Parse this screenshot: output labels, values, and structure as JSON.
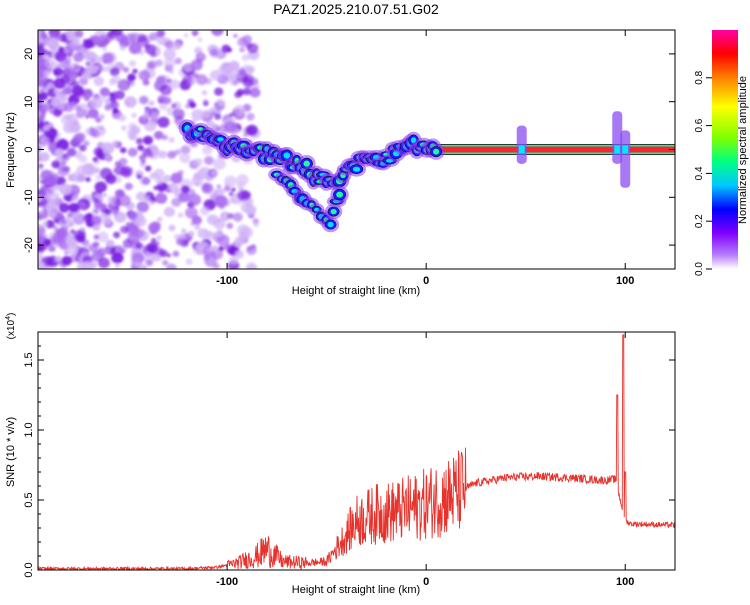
{
  "title": "PAZ1.2025.210.07.51.G02",
  "chart_data": [
    {
      "type": "heatmap",
      "xlabel": "Height of straight line (km)",
      "ylabel": "Frequency (Hz)",
      "xlim": [
        -195,
        125
      ],
      "ylim": [
        -25,
        25
      ],
      "xticks": [
        -100,
        0,
        100
      ],
      "xtick_labels": [
        "-100",
        "0",
        "100"
      ],
      "yticks": [
        -20,
        -10,
        0,
        10,
        20
      ],
      "ytick_labels": [
        "-20",
        "-10",
        "0",
        "10",
        "20"
      ],
      "colorbar": {
        "label": "Normalized spectral amplitude",
        "range": [
          0,
          1
        ],
        "ticks": [
          0.0,
          0.2,
          0.4,
          0.6,
          0.8
        ],
        "tick_labels": [
          "0.0",
          "0.2",
          "0.4",
          "0.6",
          "0.8"
        ],
        "colors": [
          "#ffffff",
          "#b57bff",
          "#8000ff",
          "#0000ff",
          "#00c8ff",
          "#00ff80",
          "#80ff00",
          "#ffff00",
          "#ff8000",
          "#ff0000",
          "#ff00a0"
        ]
      },
      "main_trace": [
        {
          "x": -120,
          "y": 4
        },
        {
          "x": -110,
          "y": 3
        },
        {
          "x": -100,
          "y": 1
        },
        {
          "x": -90,
          "y": 0
        },
        {
          "x": -80,
          "y": -1
        },
        {
          "x": -70,
          "y": -2
        },
        {
          "x": -60,
          "y": -4
        },
        {
          "x": -55,
          "y": -6
        },
        {
          "x": -47,
          "y": -7
        },
        {
          "x": -40,
          "y": -4
        },
        {
          "x": -30,
          "y": -2
        },
        {
          "x": -20,
          "y": -2
        },
        {
          "x": -15,
          "y": 0
        },
        {
          "x": -8,
          "y": 1
        },
        {
          "x": -3,
          "y": 1
        },
        {
          "x": 5,
          "y": 0
        },
        {
          "x": 20,
          "y": 0
        },
        {
          "x": 50,
          "y": 0
        },
        {
          "x": 80,
          "y": 0
        },
        {
          "x": 100,
          "y": 0
        },
        {
          "x": 125,
          "y": 0
        }
      ],
      "secondary_branch": [
        {
          "x": -75,
          "y": -5
        },
        {
          "x": -68,
          "y": -8
        },
        {
          "x": -60,
          "y": -11
        },
        {
          "x": -55,
          "y": -13
        },
        {
          "x": -48,
          "y": -16
        },
        {
          "x": -45,
          "y": -11
        },
        {
          "x": -42,
          "y": -8
        }
      ],
      "strong_line": {
        "y": 0,
        "x_start": 0,
        "x_end": 125
      },
      "bursts": [
        {
          "x": 48,
          "y_min": -3,
          "y_max": 5
        },
        {
          "x": 96,
          "y_min": -3,
          "y_max": 8
        },
        {
          "x": 100,
          "y_min": -8,
          "y_max": 4
        }
      ]
    },
    {
      "type": "line",
      "xlabel": "Height of straight line (km)",
      "ylabel": "SNR (10 * v/v)",
      "y_multiplier_label": "(x10",
      "y_multiplier_exp": "4",
      "xlim": [
        -195,
        125
      ],
      "ylim": [
        0,
        1.7
      ],
      "xticks": [
        -100,
        0,
        100
      ],
      "xtick_labels": [
        "-100",
        "0",
        "100"
      ],
      "yticks": [
        0.0,
        0.5,
        1.0,
        1.5
      ],
      "ytick_labels": [
        "0.0",
        "0.5",
        "1.0",
        "1.5"
      ],
      "line_color": "#e8322c",
      "envelope": [
        {
          "x": -195,
          "y": 0.01
        },
        {
          "x": -120,
          "y": 0.01
        },
        {
          "x": -105,
          "y": 0.02
        },
        {
          "x": -95,
          "y": 0.05
        },
        {
          "x": -85,
          "y": 0.1
        },
        {
          "x": -80,
          "y": 0.15
        },
        {
          "x": -72,
          "y": 0.06
        },
        {
          "x": -60,
          "y": 0.05
        },
        {
          "x": -50,
          "y": 0.06
        },
        {
          "x": -35,
          "y": 0.35
        },
        {
          "x": -25,
          "y": 0.4
        },
        {
          "x": -15,
          "y": 0.42
        },
        {
          "x": -5,
          "y": 0.45
        },
        {
          "x": 5,
          "y": 0.5
        },
        {
          "x": 15,
          "y": 0.55
        },
        {
          "x": 25,
          "y": 0.62
        },
        {
          "x": 40,
          "y": 0.66
        },
        {
          "x": 55,
          "y": 0.67
        },
        {
          "x": 70,
          "y": 0.66
        },
        {
          "x": 90,
          "y": 0.64
        },
        {
          "x": 95,
          "y": 0.65
        },
        {
          "x": 100,
          "y": 0.35
        },
        {
          "x": 103,
          "y": 0.33
        },
        {
          "x": 125,
          "y": 0.32
        }
      ],
      "spikes": [
        {
          "x": 96,
          "y": 1.25
        },
        {
          "x": 99,
          "y": 1.68
        },
        {
          "x": 100,
          "y": 0.7
        }
      ]
    }
  ]
}
